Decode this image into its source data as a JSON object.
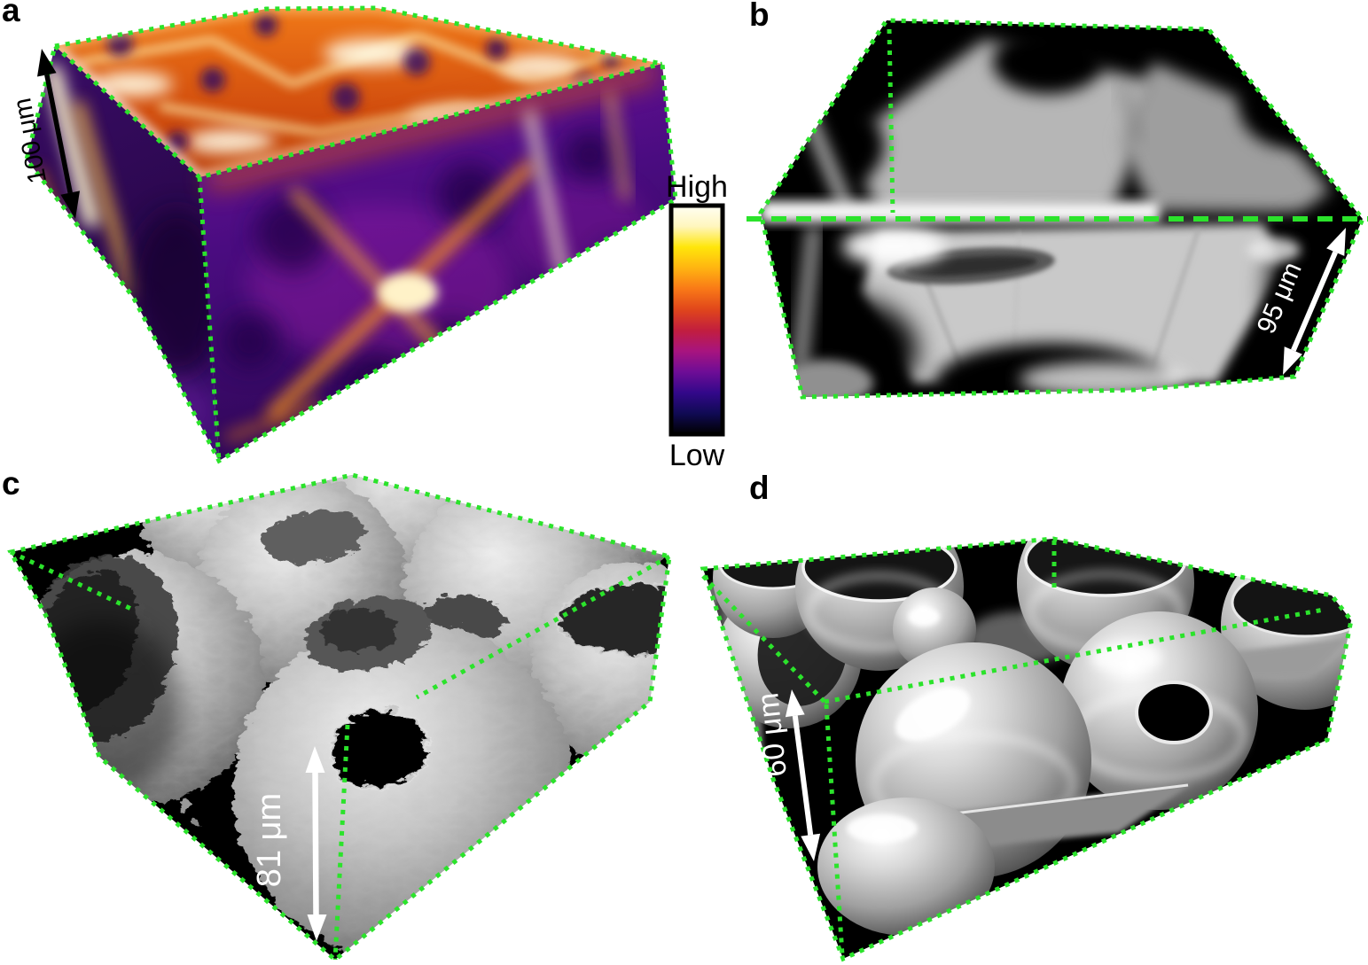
{
  "figure": {
    "background_color": "#FFFFFF",
    "outline_color": "#2BE32B",
    "panels": [
      {
        "label": "a",
        "scale_label": "100 μm",
        "scale_label_color": "#000000",
        "content": "intensity colormap volume render"
      },
      {
        "label": "b",
        "scale_label": "95 μm",
        "scale_label_color": "#FFFFFF",
        "content": "grayscale surface render"
      },
      {
        "label": "c",
        "scale_label": "81 μm",
        "scale_label_color": "#FFFFFF",
        "content": "grayscale spherulite render"
      },
      {
        "label": "d",
        "scale_label": "60 μm",
        "scale_label_color": "#FFFFFF",
        "content": "grayscale spherulite render"
      }
    ],
    "colorbar": {
      "high_label": "High",
      "low_label": "Low",
      "gradient_top_to_bottom": [
        "#FFFFF4",
        "#FFF6BE",
        "#FFE60A",
        "#FFB411",
        "#F97917",
        "#E0461B",
        "#C21E3E",
        "#A8147F",
        "#6E0D96",
        "#33088A",
        "#100A54",
        "#000000"
      ]
    }
  }
}
